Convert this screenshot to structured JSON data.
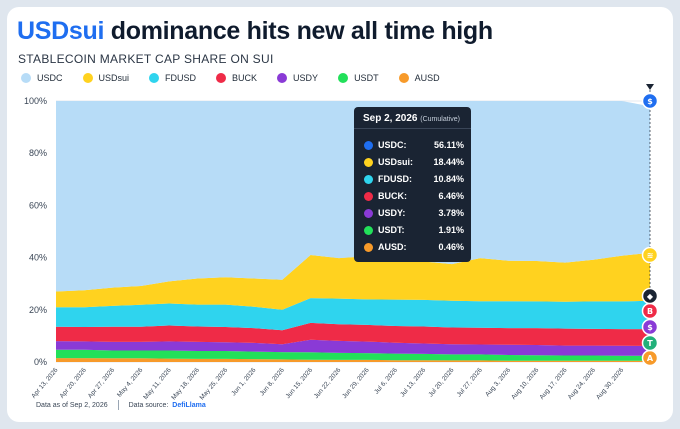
{
  "header": {
    "title_highlight": "USDsui",
    "title_rest": " dominance hits new all time high",
    "subtitle": "STABLECOIN MARKET CAP SHARE ON SUI"
  },
  "legend": [
    {
      "label": "USDC",
      "color": "#b7dcf7"
    },
    {
      "label": "USDsui",
      "color": "#ffd21f"
    },
    {
      "label": "FDUSD",
      "color": "#2fd4ee"
    },
    {
      "label": "BUCK",
      "color": "#ef2b47"
    },
    {
      "label": "USDY",
      "color": "#8a3ad6"
    },
    {
      "label": "USDT",
      "color": "#22e05a"
    },
    {
      "label": "AUSD",
      "color": "#f79a2a"
    }
  ],
  "tooltip": {
    "date": "Sep 2, 2026",
    "note": "(Cumulative)",
    "rows": [
      {
        "label": "USDC:",
        "value": "56.11%",
        "color": "#1f6ef0"
      },
      {
        "label": "USDsui:",
        "value": "18.44%",
        "color": "#ffd21f"
      },
      {
        "label": "FDUSD:",
        "value": "10.84%",
        "color": "#2fd4ee"
      },
      {
        "label": "BUCK:",
        "value": "6.46%",
        "color": "#ef2b47"
      },
      {
        "label": "USDY:",
        "value": "3.78%",
        "color": "#8a3ad6"
      },
      {
        "label": "USDT:",
        "value": "1.91%",
        "color": "#22e05a"
      },
      {
        "label": "AUSD:",
        "value": "0.46%",
        "color": "#f79a2a"
      }
    ]
  },
  "footer": {
    "as_of": "Data as of Sep 2, 2026",
    "source_label": "Data source:",
    "source_name": "DefiLlama"
  },
  "chart_data": {
    "type": "area",
    "stacked": true,
    "ylim": [
      0,
      100
    ],
    "yticks": [
      "0%",
      "20%",
      "40%",
      "60%",
      "80%",
      "100%"
    ],
    "categories": [
      "Apr 13, 2026",
      "Apr 20, 2026",
      "Apr 27, 2026",
      "May 4, 2026",
      "May 11, 2026",
      "May 18, 2026",
      "May 25, 2026",
      "Jun 1, 2026",
      "Jun 8, 2026",
      "Jun 15, 2026",
      "Jun 22, 2026",
      "Jun 29, 2026",
      "Jul 6, 2026",
      "Jul 13, 2026",
      "Jul 20, 2026",
      "Jul 27, 2026",
      "Aug 3, 2026",
      "Aug 10, 2026",
      "Aug 17, 2026",
      "Aug 24, 2026",
      "Aug 30, 2026",
      "Sep 2, 2026"
    ],
    "xtick_labels": [
      "Apr 13, 2026",
      "Apr 20, 2026",
      "Apr 27, 2026",
      "May 4, 2026",
      "May 11, 2026",
      "May 18, 2026",
      "May 25, 2026",
      "Jun 1, 2026",
      "Jun 8, 2026",
      "Jun 15, 2026",
      "Jun 22, 2026",
      "Jun 29, 2026",
      "Jul 6, 2026",
      "Jul 13, 2026",
      "Jul 20, 2026",
      "Jul 27, 2026",
      "Aug 3, 2026",
      "Aug 10, 2026",
      "Aug 17, 2026",
      "Aug 24, 2026",
      "Aug 30, 2026"
    ],
    "series": [
      {
        "name": "AUSD",
        "color": "#f79a2a",
        "values": [
          1.5,
          1.5,
          1.4,
          1.4,
          1.3,
          1.2,
          1.2,
          1.1,
          1.0,
          0.9,
          0.8,
          0.8,
          0.7,
          0.7,
          0.6,
          0.6,
          0.5,
          0.5,
          0.5,
          0.5,
          0.5,
          0.46
        ]
      },
      {
        "name": "USDT",
        "color": "#22e05a",
        "values": [
          3.2,
          3.2,
          3.0,
          3.0,
          3.1,
          3.0,
          3.0,
          2.9,
          2.8,
          2.8,
          2.7,
          2.6,
          2.5,
          2.4,
          2.3,
          2.3,
          2.2,
          2.1,
          2.0,
          2.0,
          1.9,
          1.91
        ]
      },
      {
        "name": "USDY",
        "color": "#8a3ad6",
        "values": [
          3.3,
          3.2,
          3.3,
          3.3,
          3.5,
          3.5,
          3.4,
          3.3,
          3.0,
          4.8,
          4.6,
          4.4,
          4.2,
          4.0,
          3.9,
          3.8,
          3.9,
          3.9,
          3.8,
          3.8,
          3.8,
          3.78
        ]
      },
      {
        "name": "BUCK",
        "color": "#ef2b47",
        "values": [
          5.5,
          5.5,
          5.8,
          5.8,
          6.1,
          5.9,
          5.8,
          5.7,
          5.4,
          6.5,
          6.4,
          6.4,
          6.4,
          6.5,
          6.4,
          6.4,
          6.4,
          6.5,
          6.5,
          6.4,
          6.4,
          6.46
        ]
      },
      {
        "name": "FDUSD",
        "color": "#2fd4ee",
        "values": [
          7.5,
          7.6,
          8.0,
          8.4,
          8.4,
          8.4,
          8.6,
          8.2,
          7.8,
          9.5,
          9.8,
          9.8,
          10.1,
          10.2,
          10.3,
          10.2,
          10.3,
          10.2,
          10.3,
          10.5,
          10.6,
          10.84
        ]
      },
      {
        "name": "USDsui",
        "color": "#ffd21f",
        "values": [
          6.0,
          6.5,
          7.0,
          7.2,
          8.5,
          10.0,
          10.5,
          10.8,
          11.5,
          16.5,
          15.5,
          16.5,
          15.5,
          14.7,
          14.0,
          16.5,
          15.5,
          15.5,
          15.0,
          16.0,
          17.5,
          18.44
        ]
      },
      {
        "name": "USDC",
        "color": "#b7dcf7",
        "values": [
          73.0,
          72.5,
          71.5,
          70.9,
          69.1,
          68.0,
          67.5,
          68.0,
          68.5,
          59.0,
          60.2,
          59.5,
          60.6,
          61.5,
          62.5,
          60.2,
          61.2,
          61.3,
          61.9,
          60.8,
          59.3,
          56.11
        ]
      }
    ]
  }
}
